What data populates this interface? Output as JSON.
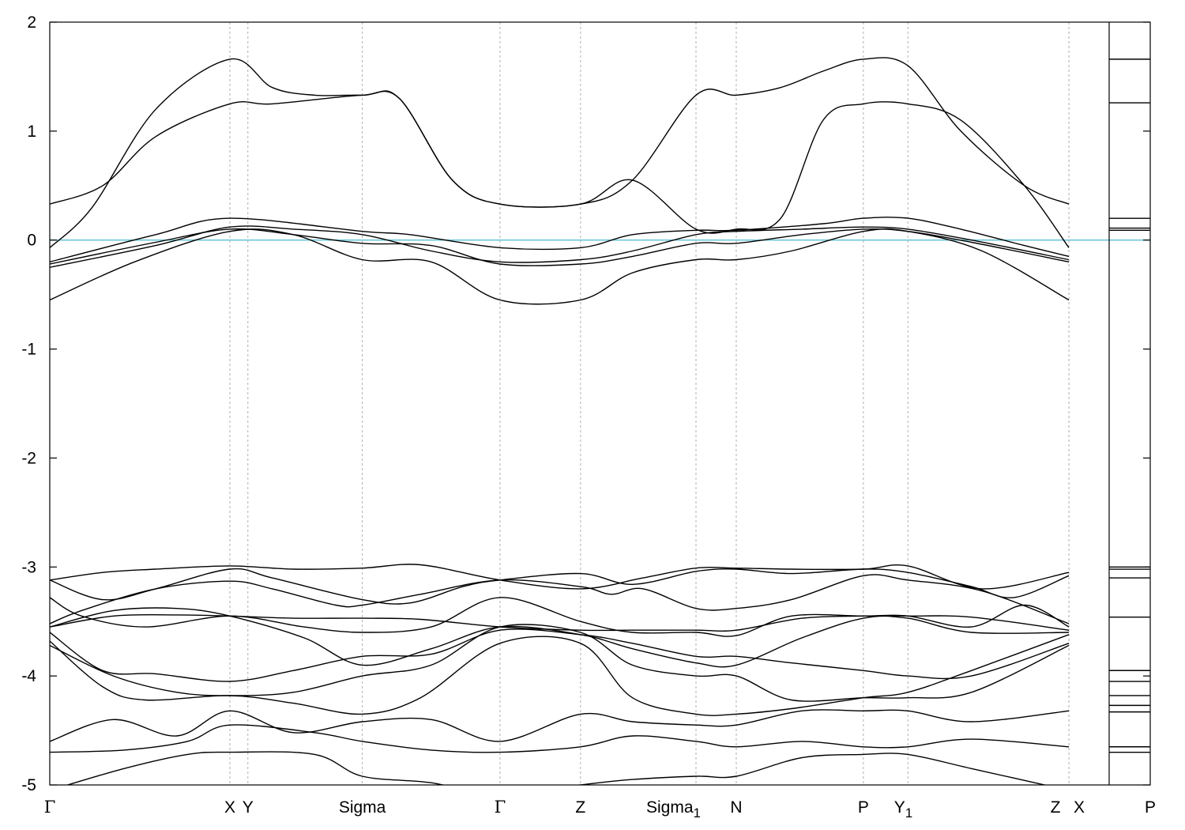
{
  "chart_data": {
    "type": "line",
    "title": "",
    "xlabel": "",
    "ylabel": "",
    "ylim": [
      -5,
      2
    ],
    "yticks": [
      2,
      1,
      0,
      -1,
      -2,
      -3,
      -4,
      -5
    ],
    "fermi_level": 0,
    "fermi_color": "#6fc6d6",
    "grid": "vertical dashed lines at high-symmetry points",
    "xlim": [
      0,
      1.0
    ],
    "kpoints": [
      {
        "label": "Γ",
        "sub": "",
        "x": 0.0
      },
      {
        "label": "X",
        "sub": "",
        "x": 0.17
      },
      {
        "label": "Y",
        "sub": "",
        "x": 0.187
      },
      {
        "label": "Sigma",
        "sub": "",
        "x": 0.295
      },
      {
        "label": "Γ",
        "sub": "",
        "x": 0.425
      },
      {
        "label": "Z",
        "sub": "",
        "x": 0.501
      },
      {
        "label": "Sigma",
        "sub": "1",
        "x": 0.61
      },
      {
        "label": "N",
        "sub": "",
        "x": 0.648
      },
      {
        "label": "P",
        "sub": "",
        "x": 0.768
      },
      {
        "label": "Y",
        "sub": "1",
        "x": 0.81
      },
      {
        "label": "Z",
        "sub": "",
        "x": 0.962
      },
      {
        "label": "X",
        "sub": "",
        "x": 0.962
      },
      {
        "label": "P",
        "sub": "",
        "x": 1.0
      }
    ],
    "series": [
      {
        "x": [
          0,
          0.05,
          0.1,
          0.17,
          0.21,
          0.295,
          0.33,
          0.38,
          0.425,
          0.501,
          0.55,
          0.61,
          0.648,
          0.69,
          0.73,
          0.768,
          0.81,
          0.86,
          0.92,
          0.962
        ],
        "values": [
          0.33,
          0.5,
          0.95,
          1.25,
          1.25,
          1.33,
          1.3,
          0.55,
          0.33,
          0.33,
          0.55,
          1.33,
          1.33,
          1.4,
          1.55,
          1.66,
          1.6,
          1.0,
          0.5,
          0.33
        ]
      },
      {
        "x": [
          0,
          0.04,
          0.1,
          0.17,
          0.21,
          0.25,
          0.295,
          0.33,
          0.38,
          0.425,
          0.501,
          0.55,
          0.61,
          0.648,
          0.69,
          0.73,
          0.768,
          0.81,
          0.86,
          0.92,
          0.962
        ],
        "values": [
          -0.07,
          0.3,
          1.2,
          1.66,
          1.4,
          1.33,
          1.33,
          1.3,
          0.55,
          0.33,
          0.33,
          0.55,
          0.1,
          0.1,
          0.2,
          1.1,
          1.25,
          1.25,
          1.1,
          0.5,
          -0.07
        ]
      },
      {
        "x": [
          0,
          0.1,
          0.17,
          0.295,
          0.34,
          0.425,
          0.501,
          0.55,
          0.61,
          0.648,
          0.73,
          0.768,
          0.81,
          0.86,
          0.92,
          0.962
        ],
        "values": [
          -0.2,
          0.05,
          0.2,
          0.08,
          0.05,
          -0.07,
          -0.07,
          0.05,
          0.09,
          0.09,
          0.15,
          0.2,
          0.2,
          0.1,
          -0.05,
          -0.15
        ]
      },
      {
        "x": [
          0,
          0.1,
          0.17,
          0.23,
          0.295,
          0.36,
          0.425,
          0.501,
          0.55,
          0.61,
          0.648,
          0.71,
          0.768,
          0.81,
          0.87,
          0.962
        ],
        "values": [
          -0.25,
          -0.05,
          0.12,
          0.1,
          0.05,
          -0.1,
          -0.2,
          -0.18,
          -0.1,
          0.05,
          0.08,
          0.1,
          0.12,
          0.1,
          0.0,
          -0.18
        ]
      },
      {
        "x": [
          0,
          0.1,
          0.17,
          0.23,
          0.295,
          0.36,
          0.425,
          0.501,
          0.55,
          0.61,
          0.648,
          0.71,
          0.768,
          0.81,
          0.87,
          0.962
        ],
        "values": [
          -0.22,
          -0.02,
          0.1,
          0.05,
          -0.03,
          -0.05,
          -0.22,
          -0.22,
          -0.15,
          -0.03,
          -0.03,
          0.05,
          0.1,
          0.08,
          -0.02,
          -0.2
        ]
      },
      {
        "x": [
          0,
          0.08,
          0.17,
          0.23,
          0.295,
          0.36,
          0.425,
          0.501,
          0.55,
          0.61,
          0.648,
          0.7,
          0.768,
          0.81,
          0.88,
          0.962
        ],
        "values": [
          -0.55,
          -0.2,
          0.08,
          0.05,
          -0.18,
          -0.2,
          -0.55,
          -0.55,
          -0.3,
          -0.18,
          -0.18,
          -0.1,
          0.08,
          0.08,
          -0.1,
          -0.55
        ]
      },
      {
        "x": [
          0,
          0.05,
          0.1,
          0.17,
          0.23,
          0.295,
          0.35,
          0.425,
          0.501,
          0.56,
          0.61,
          0.648,
          0.7,
          0.768,
          0.81,
          0.88,
          0.962
        ],
        "values": [
          -3.12,
          -3.05,
          -3.02,
          -2.99,
          -3.02,
          -3.01,
          -2.98,
          -3.12,
          -3.2,
          -3.1,
          -3.01,
          -3.01,
          -3.02,
          -3.02,
          -2.99,
          -3.2,
          -3.05
        ]
      },
      {
        "x": [
          0,
          0.05,
          0.1,
          0.17,
          0.21,
          0.295,
          0.34,
          0.39,
          0.425,
          0.501,
          0.55,
          0.61,
          0.648,
          0.7,
          0.768,
          0.81,
          0.87,
          0.91,
          0.962
        ],
        "values": [
          -3.12,
          -3.3,
          -3.2,
          -3.02,
          -3.1,
          -3.3,
          -3.33,
          -3.18,
          -3.12,
          -3.06,
          -3.16,
          -3.04,
          -3.02,
          -3.06,
          -3.02,
          -3.05,
          -3.18,
          -3.28,
          -3.08
        ]
      },
      {
        "x": [
          0,
          0.03,
          0.1,
          0.17,
          0.21,
          0.27,
          0.295,
          0.35,
          0.425,
          0.501,
          0.53,
          0.56,
          0.61,
          0.648,
          0.7,
          0.768,
          0.81,
          0.88,
          0.962
        ],
        "values": [
          -3.52,
          -3.4,
          -3.2,
          -3.13,
          -3.2,
          -3.35,
          -3.35,
          -3.25,
          -3.12,
          -3.18,
          -3.25,
          -3.2,
          -3.38,
          -3.38,
          -3.3,
          -3.08,
          -3.12,
          -3.22,
          -3.52
        ]
      },
      {
        "x": [
          0,
          0.03,
          0.09,
          0.17,
          0.24,
          0.295,
          0.36,
          0.425,
          0.501,
          0.55,
          0.61,
          0.648,
          0.7,
          0.768,
          0.81,
          0.87,
          0.92,
          0.962
        ],
        "values": [
          -3.28,
          -3.45,
          -3.55,
          -3.45,
          -3.55,
          -3.6,
          -3.55,
          -3.28,
          -3.5,
          -3.6,
          -3.6,
          -3.63,
          -3.45,
          -3.45,
          -3.45,
          -3.55,
          -3.35,
          -3.55
        ]
      },
      {
        "x": [
          0,
          0.06,
          0.12,
          0.17,
          0.23,
          0.295,
          0.35,
          0.425,
          0.501,
          0.55,
          0.61,
          0.648,
          0.71,
          0.768,
          0.81,
          0.87,
          0.962
        ],
        "values": [
          -3.55,
          -3.45,
          -3.44,
          -3.45,
          -3.47,
          -3.47,
          -3.48,
          -3.55,
          -3.58,
          -3.58,
          -3.58,
          -3.58,
          -3.47,
          -3.45,
          -3.45,
          -3.46,
          -3.58
        ]
      },
      {
        "x": [
          0,
          0.06,
          0.12,
          0.17,
          0.24,
          0.295,
          0.36,
          0.425,
          0.501,
          0.55,
          0.61,
          0.648,
          0.71,
          0.768,
          0.81,
          0.87,
          0.962
        ],
        "values": [
          -3.55,
          -3.4,
          -3.38,
          -3.45,
          -3.65,
          -3.9,
          -3.75,
          -3.55,
          -3.62,
          -3.75,
          -3.88,
          -3.9,
          -3.65,
          -3.47,
          -3.47,
          -3.6,
          -3.6
        ]
      },
      {
        "x": [
          0,
          0.05,
          0.1,
          0.17,
          0.23,
          0.295,
          0.36,
          0.425,
          0.501,
          0.55,
          0.61,
          0.648,
          0.7,
          0.768,
          0.81,
          0.87,
          0.962
        ],
        "values": [
          -3.6,
          -3.95,
          -3.98,
          -4.05,
          -3.95,
          -3.82,
          -3.8,
          -3.58,
          -3.62,
          -3.7,
          -3.82,
          -3.82,
          -3.88,
          -3.95,
          -4.0,
          -4.0,
          -3.7
        ]
      },
      {
        "x": [
          0,
          0.05,
          0.09,
          0.17,
          0.23,
          0.295,
          0.35,
          0.425,
          0.501,
          0.55,
          0.61,
          0.648,
          0.7,
          0.768,
          0.81,
          0.87,
          0.962
        ],
        "values": [
          -3.68,
          -4.1,
          -4.22,
          -4.18,
          -4.25,
          -4.35,
          -4.2,
          -3.7,
          -3.7,
          -4.2,
          -4.35,
          -4.35,
          -4.3,
          -4.2,
          -4.15,
          -3.95,
          -3.62
        ]
      },
      {
        "x": [
          0,
          0.06,
          0.12,
          0.17,
          0.23,
          0.295,
          0.36,
          0.425,
          0.501,
          0.55,
          0.61,
          0.648,
          0.7,
          0.768,
          0.81,
          0.87,
          0.962
        ],
        "values": [
          -3.72,
          -4.0,
          -4.15,
          -4.18,
          -4.15,
          -4.0,
          -3.9,
          -3.55,
          -3.6,
          -3.9,
          -4.0,
          -4.0,
          -4.22,
          -4.2,
          -4.2,
          -4.15,
          -3.72
        ]
      },
      {
        "x": [
          0,
          0.06,
          0.12,
          0.17,
          0.23,
          0.295,
          0.36,
          0.425,
          0.501,
          0.55,
          0.61,
          0.648,
          0.71,
          0.768,
          0.81,
          0.87,
          0.962
        ],
        "values": [
          -4.6,
          -4.4,
          -4.55,
          -4.32,
          -4.52,
          -4.42,
          -4.4,
          -4.6,
          -4.35,
          -4.42,
          -4.45,
          -4.45,
          -4.32,
          -4.32,
          -4.32,
          -4.42,
          -4.32
        ]
      },
      {
        "x": [
          0,
          0.07,
          0.13,
          0.17,
          0.25,
          0.295,
          0.36,
          0.425,
          0.501,
          0.55,
          0.61,
          0.648,
          0.71,
          0.768,
          0.81,
          0.87,
          0.962
        ],
        "values": [
          -4.7,
          -4.68,
          -4.6,
          -4.45,
          -4.52,
          -4.6,
          -4.68,
          -4.7,
          -4.65,
          -4.55,
          -4.6,
          -4.65,
          -4.6,
          -4.65,
          -4.65,
          -4.58,
          -4.65
        ]
      },
      {
        "x": [
          0,
          0.07,
          0.13,
          0.17,
          0.25,
          0.295,
          0.36,
          0.425,
          0.501,
          0.55,
          0.61,
          0.648,
          0.71,
          0.768,
          0.81,
          0.87,
          0.962
        ],
        "values": [
          -5.05,
          -4.85,
          -4.72,
          -4.7,
          -4.72,
          -4.92,
          -4.98,
          -5.1,
          -5.0,
          -4.95,
          -4.92,
          -4.92,
          -4.75,
          -4.72,
          -4.72,
          -4.85,
          -5.05
        ]
      }
    ],
    "panel_levels": [
      1.66,
      1.26,
      0.2,
      0.11,
      0.09,
      -3.0,
      -3.02,
      -3.1,
      -3.46,
      -4.18,
      -4.33,
      -4.7,
      -4.05,
      -4.27,
      -3.95,
      -4.65
    ]
  }
}
